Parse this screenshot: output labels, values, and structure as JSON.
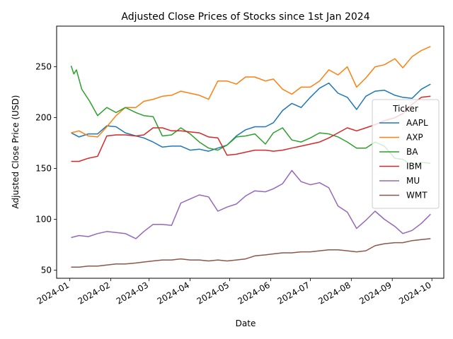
{
  "chart_data": {
    "type": "line",
    "title": "Adjusted Close Prices of Stocks since 1st Jan 2024",
    "xlabel": "Date",
    "ylabel": "Adjusted Close Price (USD)",
    "x_ticks": [
      "2024-01",
      "2024-02",
      "2024-03",
      "2024-04",
      "2024-05",
      "2024-06",
      "2024-07",
      "2024-08",
      "2024-09",
      "2024-10"
    ],
    "y_ticks": [
      50,
      100,
      150,
      200,
      250
    ],
    "xlim": [
      "2023-12-22",
      "2024-10-10"
    ],
    "ylim": [
      42,
      290
    ],
    "grid": false,
    "legend": {
      "title": "Ticker",
      "position": "center-right"
    },
    "series": [
      {
        "name": "AAPL",
        "color": "#1f77b4",
        "points": [
          [
            "2024-01-02",
            185
          ],
          [
            "2024-01-08",
            181
          ],
          [
            "2024-01-15",
            184
          ],
          [
            "2024-01-22",
            184
          ],
          [
            "2024-01-29",
            192
          ],
          [
            "2024-02-05",
            191
          ],
          [
            "2024-02-12",
            185
          ],
          [
            "2024-02-20",
            182
          ],
          [
            "2024-02-26",
            180
          ],
          [
            "2024-03-04",
            176
          ],
          [
            "2024-03-11",
            171
          ],
          [
            "2024-03-18",
            172
          ],
          [
            "2024-03-25",
            172
          ],
          [
            "2024-04-01",
            168
          ],
          [
            "2024-04-08",
            169
          ],
          [
            "2024-04-15",
            167
          ],
          [
            "2024-04-22",
            170
          ],
          [
            "2024-04-29",
            173
          ],
          [
            "2024-05-06",
            182
          ],
          [
            "2024-05-13",
            188
          ],
          [
            "2024-05-20",
            191
          ],
          [
            "2024-05-28",
            191
          ],
          [
            "2024-06-03",
            195
          ],
          [
            "2024-06-10",
            207
          ],
          [
            "2024-06-17",
            214
          ],
          [
            "2024-06-24",
            210
          ],
          [
            "2024-07-01",
            220
          ],
          [
            "2024-07-08",
            229
          ],
          [
            "2024-07-15",
            234
          ],
          [
            "2024-07-22",
            224
          ],
          [
            "2024-07-29",
            220
          ],
          [
            "2024-08-05",
            208
          ],
          [
            "2024-08-12",
            221
          ],
          [
            "2024-08-19",
            226
          ],
          [
            "2024-08-26",
            227
          ],
          [
            "2024-09-03",
            222
          ],
          [
            "2024-09-09",
            220
          ],
          [
            "2024-09-16",
            219
          ],
          [
            "2024-09-23",
            228
          ],
          [
            "2024-09-30",
            233
          ]
        ]
      },
      {
        "name": "AXP",
        "color": "#ff7f0e",
        "points": [
          [
            "2024-01-02",
            185
          ],
          [
            "2024-01-08",
            187
          ],
          [
            "2024-01-15",
            182
          ],
          [
            "2024-01-22",
            181
          ],
          [
            "2024-01-29",
            191
          ],
          [
            "2024-02-05",
            202
          ],
          [
            "2024-02-12",
            210
          ],
          [
            "2024-02-20",
            210
          ],
          [
            "2024-02-26",
            216
          ],
          [
            "2024-03-04",
            218
          ],
          [
            "2024-03-11",
            221
          ],
          [
            "2024-03-18",
            222
          ],
          [
            "2024-03-25",
            226
          ],
          [
            "2024-04-01",
            224
          ],
          [
            "2024-04-08",
            222
          ],
          [
            "2024-04-15",
            218
          ],
          [
            "2024-04-22",
            236
          ],
          [
            "2024-04-29",
            236
          ],
          [
            "2024-05-06",
            233
          ],
          [
            "2024-05-13",
            240
          ],
          [
            "2024-05-20",
            240
          ],
          [
            "2024-05-28",
            236
          ],
          [
            "2024-06-03",
            238
          ],
          [
            "2024-06-10",
            228
          ],
          [
            "2024-06-17",
            223
          ],
          [
            "2024-06-24",
            230
          ],
          [
            "2024-07-01",
            230
          ],
          [
            "2024-07-08",
            236
          ],
          [
            "2024-07-15",
            247
          ],
          [
            "2024-07-22",
            242
          ],
          [
            "2024-07-29",
            250
          ],
          [
            "2024-08-05",
            230
          ],
          [
            "2024-08-12",
            239
          ],
          [
            "2024-08-19",
            250
          ],
          [
            "2024-08-26",
            252
          ],
          [
            "2024-09-03",
            258
          ],
          [
            "2024-09-09",
            249
          ],
          [
            "2024-09-16",
            260
          ],
          [
            "2024-09-23",
            266
          ],
          [
            "2024-09-30",
            270
          ]
        ]
      },
      {
        "name": "BA",
        "color": "#2ca02c",
        "points": [
          [
            "2024-01-02",
            251
          ],
          [
            "2024-01-04",
            243
          ],
          [
            "2024-01-06",
            247
          ],
          [
            "2024-01-10",
            228
          ],
          [
            "2024-01-16",
            216
          ],
          [
            "2024-01-22",
            202
          ],
          [
            "2024-01-29",
            210
          ],
          [
            "2024-02-05",
            205
          ],
          [
            "2024-02-12",
            210
          ],
          [
            "2024-02-20",
            205
          ],
          [
            "2024-02-26",
            202
          ],
          [
            "2024-03-04",
            201
          ],
          [
            "2024-03-11",
            182
          ],
          [
            "2024-03-18",
            183
          ],
          [
            "2024-03-25",
            190
          ],
          [
            "2024-04-01",
            184
          ],
          [
            "2024-04-08",
            176
          ],
          [
            "2024-04-15",
            170
          ],
          [
            "2024-04-22",
            168
          ],
          [
            "2024-04-29",
            173
          ],
          [
            "2024-05-06",
            181
          ],
          [
            "2024-05-13",
            182
          ],
          [
            "2024-05-20",
            184
          ],
          [
            "2024-05-28",
            174
          ],
          [
            "2024-06-03",
            185
          ],
          [
            "2024-06-10",
            190
          ],
          [
            "2024-06-17",
            178
          ],
          [
            "2024-06-24",
            176
          ],
          [
            "2024-07-01",
            180
          ],
          [
            "2024-07-08",
            185
          ],
          [
            "2024-07-15",
            184
          ],
          [
            "2024-07-22",
            181
          ],
          [
            "2024-07-29",
            176
          ],
          [
            "2024-08-05",
            170
          ],
          [
            "2024-08-12",
            170
          ],
          [
            "2024-08-19",
            176
          ],
          [
            "2024-08-26",
            172
          ],
          [
            "2024-09-03",
            160
          ],
          [
            "2024-09-09",
            159
          ],
          [
            "2024-09-16",
            153
          ],
          [
            "2024-09-23",
            156
          ],
          [
            "2024-09-30",
            155
          ]
        ]
      },
      {
        "name": "IBM",
        "color": "#d62728",
        "points": [
          [
            "2024-01-02",
            157
          ],
          [
            "2024-01-08",
            157
          ],
          [
            "2024-01-15",
            160
          ],
          [
            "2024-01-22",
            162
          ],
          [
            "2024-01-29",
            182
          ],
          [
            "2024-02-05",
            183
          ],
          [
            "2024-02-12",
            183
          ],
          [
            "2024-02-20",
            182
          ],
          [
            "2024-02-26",
            183
          ],
          [
            "2024-03-04",
            190
          ],
          [
            "2024-03-11",
            190
          ],
          [
            "2024-03-18",
            187
          ],
          [
            "2024-03-25",
            187
          ],
          [
            "2024-04-01",
            186
          ],
          [
            "2024-04-08",
            185
          ],
          [
            "2024-04-15",
            181
          ],
          [
            "2024-04-22",
            180
          ],
          [
            "2024-04-29",
            163
          ],
          [
            "2024-05-06",
            164
          ],
          [
            "2024-05-13",
            166
          ],
          [
            "2024-05-20",
            168
          ],
          [
            "2024-05-28",
            168
          ],
          [
            "2024-06-03",
            167
          ],
          [
            "2024-06-10",
            168
          ],
          [
            "2024-06-17",
            170
          ],
          [
            "2024-06-24",
            172
          ],
          [
            "2024-07-01",
            174
          ],
          [
            "2024-07-08",
            176
          ],
          [
            "2024-07-15",
            180
          ],
          [
            "2024-07-22",
            185
          ],
          [
            "2024-07-29",
            190
          ],
          [
            "2024-08-05",
            187
          ],
          [
            "2024-08-12",
            190
          ],
          [
            "2024-08-19",
            193
          ],
          [
            "2024-08-26",
            197
          ],
          [
            "2024-09-03",
            200
          ],
          [
            "2024-09-09",
            204
          ],
          [
            "2024-09-16",
            213
          ],
          [
            "2024-09-23",
            220
          ],
          [
            "2024-09-30",
            221
          ]
        ]
      },
      {
        "name": "MU",
        "color": "#9467bd",
        "points": [
          [
            "2024-01-02",
            82
          ],
          [
            "2024-01-08",
            84
          ],
          [
            "2024-01-15",
            83
          ],
          [
            "2024-01-22",
            86
          ],
          [
            "2024-01-29",
            88
          ],
          [
            "2024-02-05",
            87
          ],
          [
            "2024-02-12",
            86
          ],
          [
            "2024-02-20",
            81
          ],
          [
            "2024-02-26",
            88
          ],
          [
            "2024-03-04",
            95
          ],
          [
            "2024-03-11",
            95
          ],
          [
            "2024-03-18",
            94
          ],
          [
            "2024-03-25",
            116
          ],
          [
            "2024-04-01",
            120
          ],
          [
            "2024-04-08",
            124
          ],
          [
            "2024-04-15",
            122
          ],
          [
            "2024-04-22",
            108
          ],
          [
            "2024-04-29",
            112
          ],
          [
            "2024-05-06",
            115
          ],
          [
            "2024-05-13",
            123
          ],
          [
            "2024-05-20",
            128
          ],
          [
            "2024-05-28",
            127
          ],
          [
            "2024-06-03",
            130
          ],
          [
            "2024-06-10",
            135
          ],
          [
            "2024-06-17",
            148
          ],
          [
            "2024-06-24",
            137
          ],
          [
            "2024-07-01",
            134
          ],
          [
            "2024-07-08",
            136
          ],
          [
            "2024-07-15",
            131
          ],
          [
            "2024-07-22",
            113
          ],
          [
            "2024-07-29",
            107
          ],
          [
            "2024-08-05",
            91
          ],
          [
            "2024-08-12",
            99
          ],
          [
            "2024-08-19",
            108
          ],
          [
            "2024-08-26",
            100
          ],
          [
            "2024-09-03",
            93
          ],
          [
            "2024-09-09",
            86
          ],
          [
            "2024-09-16",
            89
          ],
          [
            "2024-09-23",
            96
          ],
          [
            "2024-09-30",
            105
          ]
        ]
      },
      {
        "name": "WMT",
        "color": "#8c564b",
        "points": [
          [
            "2024-01-02",
            53
          ],
          [
            "2024-01-08",
            53
          ],
          [
            "2024-01-15",
            54
          ],
          [
            "2024-01-22",
            54
          ],
          [
            "2024-01-29",
            55
          ],
          [
            "2024-02-05",
            56
          ],
          [
            "2024-02-12",
            56
          ],
          [
            "2024-02-20",
            57
          ],
          [
            "2024-02-26",
            58
          ],
          [
            "2024-03-04",
            59
          ],
          [
            "2024-03-11",
            60
          ],
          [
            "2024-03-18",
            60
          ],
          [
            "2024-03-25",
            61
          ],
          [
            "2024-04-01",
            60
          ],
          [
            "2024-04-08",
            60
          ],
          [
            "2024-04-15",
            59
          ],
          [
            "2024-04-22",
            60
          ],
          [
            "2024-04-29",
            59
          ],
          [
            "2024-05-06",
            60
          ],
          [
            "2024-05-13",
            61
          ],
          [
            "2024-05-20",
            64
          ],
          [
            "2024-05-28",
            65
          ],
          [
            "2024-06-03",
            66
          ],
          [
            "2024-06-10",
            67
          ],
          [
            "2024-06-17",
            67
          ],
          [
            "2024-06-24",
            68
          ],
          [
            "2024-07-01",
            68
          ],
          [
            "2024-07-08",
            69
          ],
          [
            "2024-07-15",
            70
          ],
          [
            "2024-07-22",
            70
          ],
          [
            "2024-07-29",
            69
          ],
          [
            "2024-08-05",
            68
          ],
          [
            "2024-08-12",
            69
          ],
          [
            "2024-08-19",
            74
          ],
          [
            "2024-08-26",
            76
          ],
          [
            "2024-09-03",
            77
          ],
          [
            "2024-09-09",
            77
          ],
          [
            "2024-09-16",
            79
          ],
          [
            "2024-09-23",
            80
          ],
          [
            "2024-09-30",
            81
          ]
        ]
      }
    ]
  }
}
